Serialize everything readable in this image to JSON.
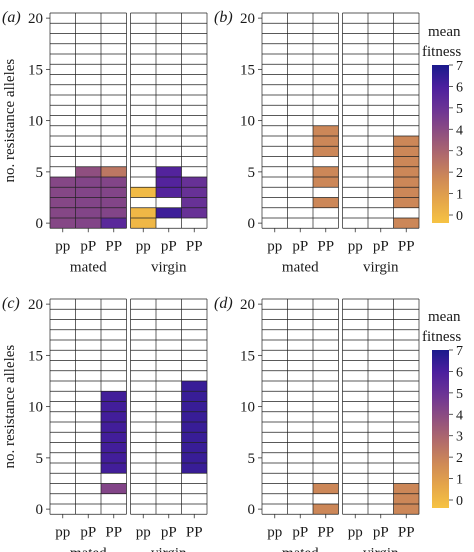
{
  "figure": {
    "ylabel": "no. resistance alleles",
    "yticks": [
      0,
      5,
      10,
      15,
      20
    ],
    "genotypes": [
      "pp",
      "pP",
      "PP"
    ],
    "groups": [
      "mated",
      "virgin"
    ],
    "legend": {
      "title_line1": "mean",
      "title_line2": "fitness",
      "ticks": [
        0,
        1,
        2,
        3,
        4,
        5,
        6,
        7
      ],
      "colors": [
        "#f6c343",
        "#e5a64a",
        "#cf8a56",
        "#b06a6c",
        "#8f4f80",
        "#6e3594",
        "#4c1f9e",
        "#1a1a8c"
      ]
    }
  },
  "chart_data": [
    {
      "type": "heatmap",
      "panel_label": "(a)",
      "alleles_range": [
        0,
        20
      ],
      "cells": {
        "mated": {
          "pp": [
            [
              0,
              4.3
            ],
            [
              1,
              4.3
            ],
            [
              2,
              4.3
            ],
            [
              3,
              4.3
            ],
            [
              4,
              4.3
            ]
          ],
          "pP": [
            [
              0,
              4.4
            ],
            [
              1,
              4.4
            ],
            [
              2,
              4.4
            ],
            [
              3,
              4.4
            ],
            [
              4,
              4.4
            ],
            [
              5,
              4.0
            ]
          ],
          "PP": [
            [
              0,
              5.6
            ],
            [
              1,
              4.4
            ],
            [
              2,
              4.4
            ],
            [
              3,
              4.4
            ],
            [
              4,
              4.4
            ],
            [
              5,
              2.6
            ]
          ]
        },
        "virgin": {
          "pp": [
            [
              0,
              0.4
            ],
            [
              1,
              0.4
            ],
            [
              3,
              0.3
            ]
          ],
          "pP": [
            [
              1,
              6.3
            ],
            [
              3,
              5.8
            ],
            [
              4,
              5.8
            ],
            [
              5,
              5.8
            ]
          ],
          "PP": [
            [
              1,
              5.2
            ],
            [
              2,
              5.2
            ],
            [
              3,
              5.2
            ],
            [
              4,
              5.2
            ]
          ]
        }
      }
    },
    {
      "type": "heatmap",
      "panel_label": "(b)",
      "alleles_range": [
        0,
        20
      ],
      "cells": {
        "mated": {
          "pp": [],
          "pP": [],
          "PP": [
            [
              2,
              2.1
            ],
            [
              4,
              2.1
            ],
            [
              5,
              2.1
            ],
            [
              7,
              2.1
            ],
            [
              8,
              2.1
            ],
            [
              9,
              2.1
            ]
          ]
        },
        "virgin": {
          "pp": [],
          "pP": [],
          "PP": [
            [
              0,
              2.1
            ],
            [
              2,
              2.1
            ],
            [
              3,
              2.1
            ],
            [
              4,
              2.1
            ],
            [
              5,
              2.1
            ],
            [
              6,
              2.1
            ],
            [
              7,
              2.1
            ],
            [
              8,
              2.1
            ]
          ]
        }
      }
    },
    {
      "type": "heatmap",
      "panel_label": "(c)",
      "alleles_range": [
        0,
        20
      ],
      "cells": {
        "mated": {
          "pp": [],
          "pP": [],
          "PP": [
            [
              2,
              4.4
            ],
            [
              4,
              6.2
            ],
            [
              5,
              6.2
            ],
            [
              6,
              6.2
            ],
            [
              7,
              6.2
            ],
            [
              8,
              6.2
            ],
            [
              9,
              6.2
            ],
            [
              10,
              6.2
            ],
            [
              11,
              6.2
            ]
          ]
        },
        "virgin": {
          "pp": [],
          "pP": [],
          "PP": [
            [
              4,
              6.4
            ],
            [
              5,
              6.4
            ],
            [
              6,
              6.4
            ],
            [
              7,
              6.4
            ],
            [
              8,
              6.4
            ],
            [
              9,
              6.4
            ],
            [
              10,
              6.4
            ],
            [
              11,
              6.4
            ],
            [
              12,
              6.4
            ]
          ]
        }
      }
    },
    {
      "type": "heatmap",
      "panel_label": "(d)",
      "alleles_range": [
        0,
        20
      ],
      "cells": {
        "mated": {
          "pp": [],
          "pP": [],
          "PP": [
            [
              0,
              2.1
            ],
            [
              2,
              2.1
            ]
          ]
        },
        "virgin": {
          "pp": [],
          "pP": [],
          "PP": [
            [
              0,
              2.1
            ],
            [
              1,
              2.1
            ],
            [
              2,
              2.1
            ]
          ]
        }
      }
    }
  ]
}
